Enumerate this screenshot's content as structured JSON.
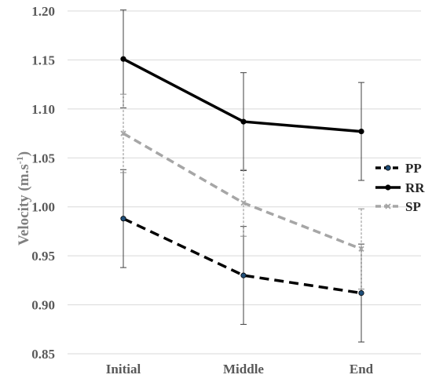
{
  "chart_data": {
    "type": "line",
    "categories": [
      "Initial",
      "Middle",
      "End"
    ],
    "ylabel": "Velocity (m.s",
    "ylabel_sup": "-1",
    "ylabel_close": ")",
    "ylim": [
      0.85,
      1.2
    ],
    "yticks": [
      "0.85",
      "0.90",
      "0.95",
      "1.00",
      "1.05",
      "1.10",
      "1.15",
      "1.20"
    ],
    "grid": true,
    "legend_position": "right",
    "series": [
      {
        "name": "PP",
        "values": [
          0.988,
          0.93,
          0.912
        ],
        "errors": [
          0.05,
          0.05,
          0.05
        ],
        "color": "#000000",
        "marker_color": "#1f4e79",
        "style": "dashed",
        "marker": "circle"
      },
      {
        "name": "RR",
        "values": [
          1.151,
          1.087,
          1.077
        ],
        "errors": [
          0.05,
          0.05,
          0.05
        ],
        "color": "#000000",
        "marker_color": "#000000",
        "style": "solid",
        "marker": "circle"
      },
      {
        "name": "SP",
        "values": [
          1.075,
          1.004,
          0.957
        ],
        "errors": [
          0.04,
          0.034,
          0.041
        ],
        "color": "#a6a6a6",
        "marker_color": "#a6a6a6",
        "style": "dashed",
        "marker": "x"
      }
    ]
  }
}
